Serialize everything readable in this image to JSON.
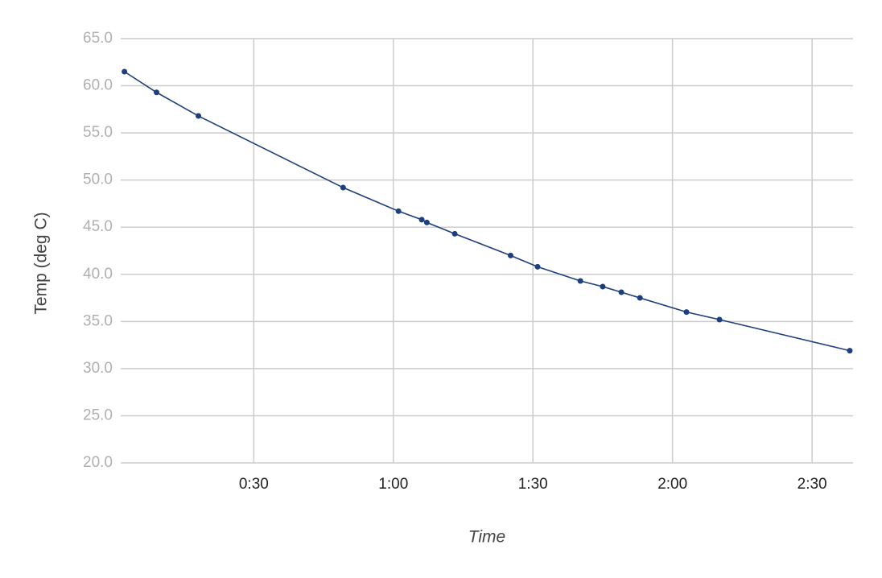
{
  "chart_data": {
    "type": "line",
    "x_label": "Time",
    "y_label": "Temp (deg C)",
    "x": [
      2.2,
      9.1,
      18.1,
      49.2,
      61.1,
      66.1,
      67.2,
      73.2,
      85.2,
      91.0,
      100.2,
      105.0,
      109.0,
      113.0,
      123.0,
      130.1,
      158.1
    ],
    "series": [
      {
        "name": "Temp",
        "color": "#1d3f7d",
        "values": [
          61.5,
          59.3,
          56.8,
          49.2,
          46.7,
          45.8,
          45.5,
          44.3,
          42.0,
          40.8,
          39.3,
          38.7,
          38.1,
          37.5,
          36.0,
          35.2,
          31.9
        ]
      }
    ],
    "xlim": [
      1.4,
      158.8
    ],
    "xticks": [
      {
        "value": 30,
        "label": "0:30"
      },
      {
        "value": 60,
        "label": "1:00"
      },
      {
        "value": 90,
        "label": "1:30"
      },
      {
        "value": 120,
        "label": "2:00"
      },
      {
        "value": 150,
        "label": "2:30"
      }
    ],
    "ylim": [
      20,
      65
    ],
    "yticks": [
      {
        "value": 20,
        "label": "20.0"
      },
      {
        "value": 25,
        "label": "25.0"
      },
      {
        "value": 30,
        "label": "30.0"
      },
      {
        "value": 35,
        "label": "35.0"
      },
      {
        "value": 40,
        "label": "40.0"
      },
      {
        "value": 45,
        "label": "45.0"
      },
      {
        "value": 50,
        "label": "50.0"
      },
      {
        "value": 55,
        "label": "55.0"
      },
      {
        "value": 60,
        "label": "60.0"
      },
      {
        "value": 65,
        "label": "65.0"
      }
    ],
    "grid": true,
    "markers": true
  }
}
